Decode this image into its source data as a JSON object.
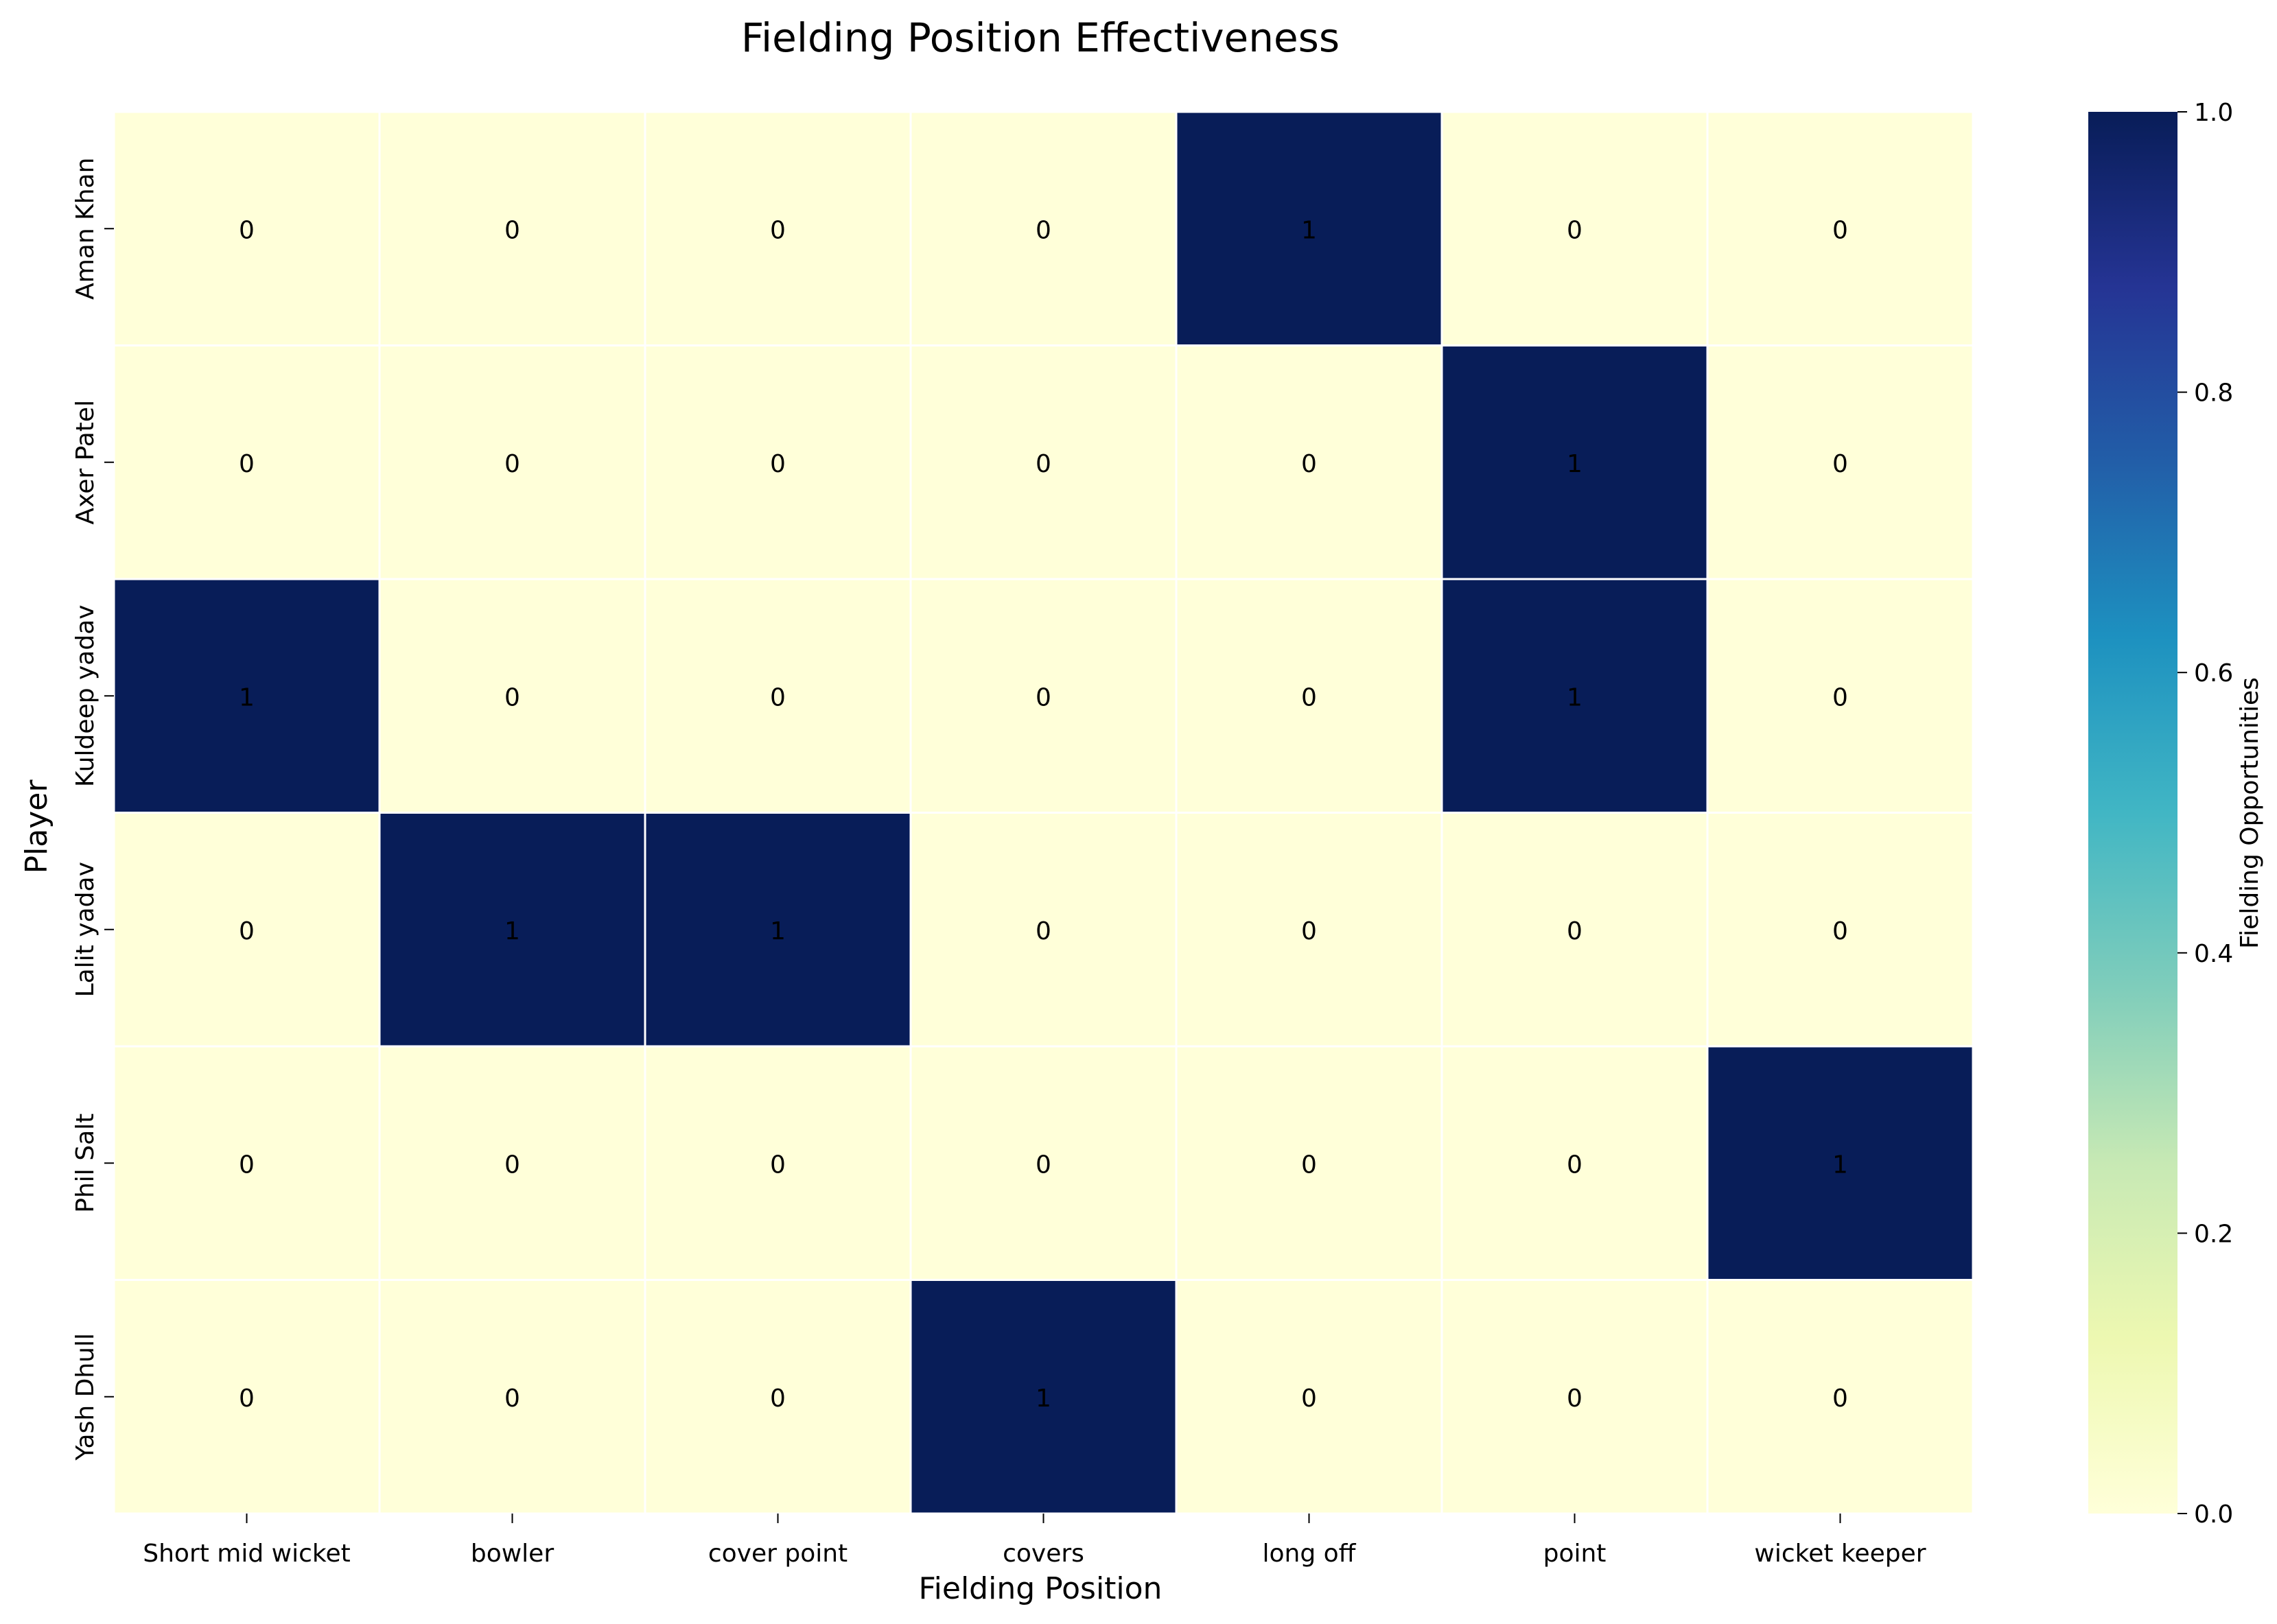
{
  "chart_data": {
    "type": "heatmap",
    "title": "Fielding Position Effectiveness",
    "xlabel": "Fielding Position",
    "ylabel": "Player",
    "colorbar_label": "Fielding Opportunities",
    "colormap": "YlGnBu",
    "vmin": 0,
    "vmax": 1,
    "colorbar_ticks": [
      "0.0",
      "0.2",
      "0.4",
      "0.6",
      "0.8",
      "1.0"
    ],
    "x_categories": [
      "Short mid wicket",
      "bowler",
      "cover point",
      "covers",
      "long off",
      "point",
      "wicket keeper"
    ],
    "y_categories": [
      "Aman Khan",
      "Axer Patel",
      "Kuldeep yadav",
      "Lalit yadav",
      "Phil Salt",
      "Yash Dhull"
    ],
    "values": [
      [
        0,
        0,
        0,
        0,
        1,
        0,
        0
      ],
      [
        0,
        0,
        0,
        0,
        0,
        1,
        0
      ],
      [
        1,
        0,
        0,
        0,
        0,
        1,
        0
      ],
      [
        0,
        1,
        1,
        0,
        0,
        0,
        0
      ],
      [
        0,
        0,
        0,
        0,
        0,
        0,
        1
      ],
      [
        0,
        0,
        0,
        1,
        0,
        0,
        0
      ]
    ],
    "annotations": true,
    "grid": false,
    "legend": "colorbar-right"
  },
  "colors": {
    "low": "#ffffd9",
    "high": "#081d58",
    "cell_border": "#ffffff",
    "text_on_low": "#262626",
    "text_on_high": "#ffffff"
  }
}
